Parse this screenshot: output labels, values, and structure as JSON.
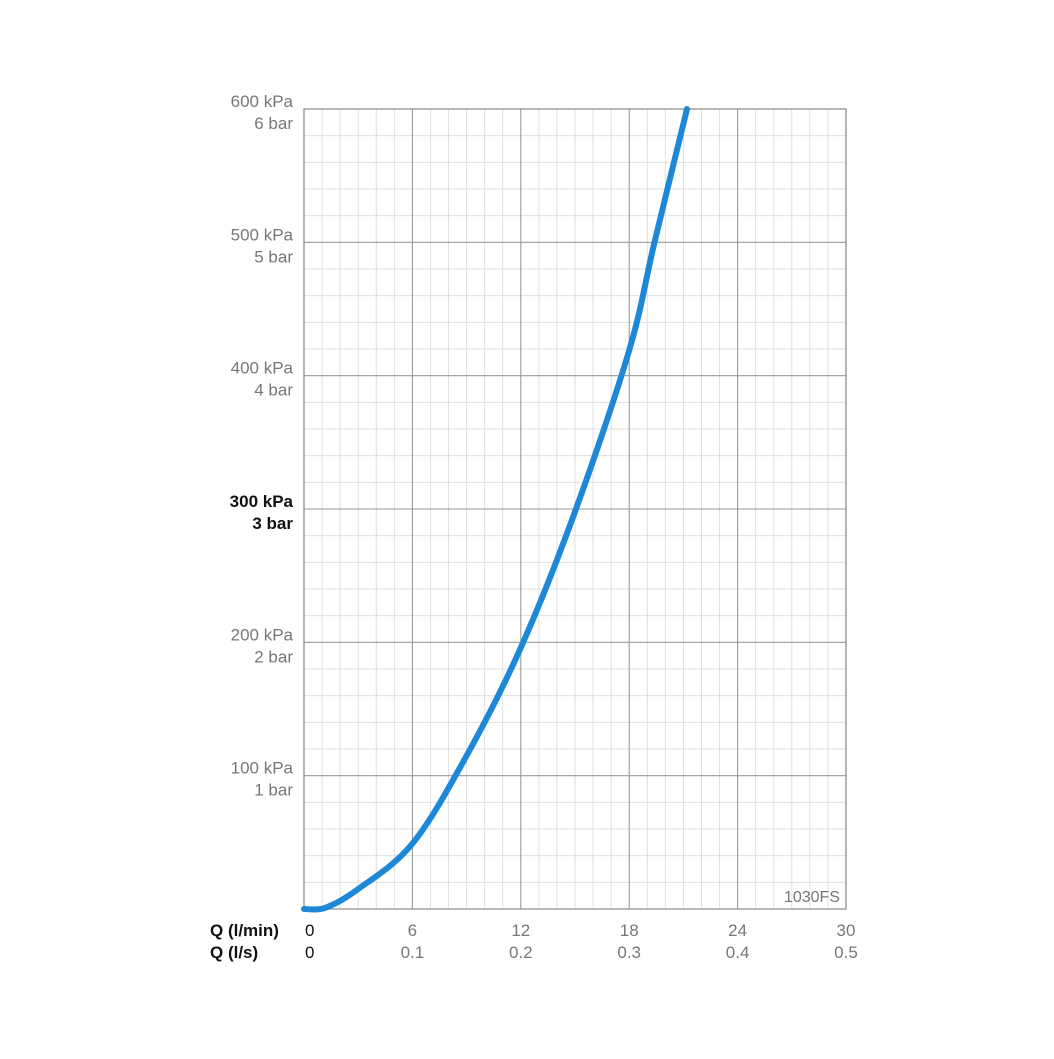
{
  "chart_data": {
    "type": "line",
    "model_label": "1030FS",
    "xlabel_primary": "Q (l/min)",
    "xlabel_secondary": "Q (l/s)",
    "x_ticks_primary": [
      "0",
      "6",
      "12",
      "18",
      "24",
      "30"
    ],
    "x_ticks_secondary": [
      "0",
      "0.1",
      "0.2",
      "0.3",
      "0.4",
      "0.5"
    ],
    "xlim": [
      0,
      30
    ],
    "y_unit_kpa": "kPa",
    "y_unit_bar": "bar",
    "y_ticks": [
      {
        "kpa": "100 kPa",
        "bar": "1 bar",
        "value": 100,
        "bold": false
      },
      {
        "kpa": "200 kPa",
        "bar": "2 bar",
        "value": 200,
        "bold": false
      },
      {
        "kpa": "300 kPa",
        "bar": "3 bar",
        "value": 300,
        "bold": true
      },
      {
        "kpa": "400 kPa",
        "bar": "4 bar",
        "value": 400,
        "bold": false
      },
      {
        "kpa": "500 kPa",
        "bar": "5 bar",
        "value": 500,
        "bold": false
      },
      {
        "kpa": "600 kPa",
        "bar": "6 bar",
        "value": 600,
        "bold": false
      }
    ],
    "ylim": [
      0,
      600
    ],
    "grid": true,
    "series": [
      {
        "color": "#1e88d8",
        "x": [
          0,
          1.2,
          3,
          6,
          9,
          12,
          15,
          18,
          19.4,
          21.2
        ],
        "y": [
          0,
          1,
          15,
          49,
          115,
          196,
          298,
          419,
          500,
          600
        ]
      }
    ]
  }
}
